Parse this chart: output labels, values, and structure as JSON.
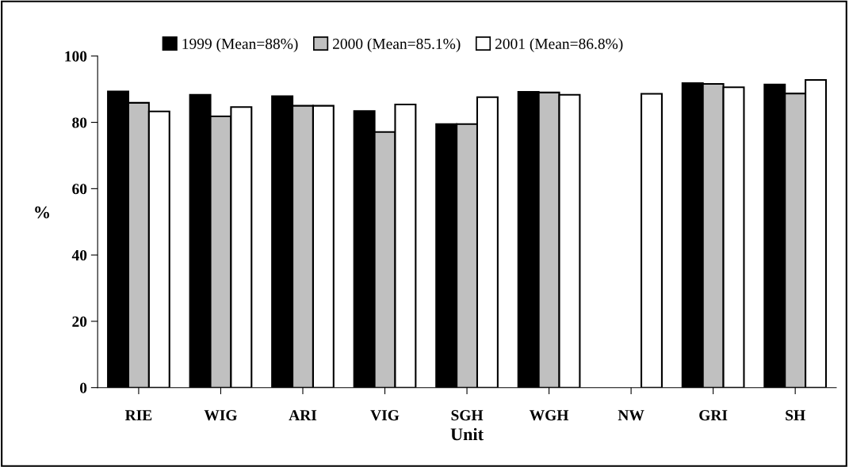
{
  "chart_data": {
    "type": "bar",
    "xlabel": "Unit",
    "ylabel": "%",
    "categories": [
      "RIE",
      "WIG",
      "ARI",
      "VIG",
      "SGH",
      "WGH",
      "NW",
      "GRI",
      "SH"
    ],
    "series": [
      {
        "name": "1999 (Mean=88%)",
        "color": "#000000",
        "values": [
          89.3,
          88.3,
          87.9,
          83.4,
          79.5,
          89.2,
          null,
          91.8,
          91.4
        ]
      },
      {
        "name": "2000 (Mean=85.1%)",
        "color": "#c0c0c0",
        "values": [
          85.9,
          81.8,
          85.0,
          77.1,
          79.5,
          89.0,
          null,
          91.6,
          88.7
        ]
      },
      {
        "name": "2001 (Mean=86.8%)",
        "color": "#ffffff",
        "values": [
          83.3,
          84.6,
          85.0,
          85.4,
          87.6,
          88.3,
          88.6,
          90.6,
          92.8
        ]
      }
    ],
    "ylim": [
      0,
      100
    ],
    "yticks": [
      0,
      20,
      40,
      60,
      80,
      100
    ],
    "grid": false,
    "legend": "top"
  }
}
